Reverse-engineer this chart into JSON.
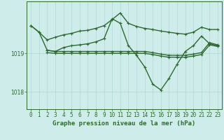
{
  "background_color": "#ceecea",
  "grid_color": "#b0d8d4",
  "line_color": "#2d6a2d",
  "title": "Graphe pression niveau de la mer (hPa)",
  "title_fontsize": 6.5,
  "tick_fontsize": 5.5,
  "xlim": [
    -0.5,
    23.5
  ],
  "ylim": [
    1017.55,
    1020.35
  ],
  "yticks": [
    1018,
    1019
  ],
  "xticks": [
    0,
    1,
    2,
    3,
    4,
    5,
    6,
    7,
    8,
    9,
    10,
    11,
    12,
    13,
    14,
    15,
    16,
    17,
    18,
    19,
    20,
    21,
    22,
    23
  ],
  "series": [
    {
      "x": [
        0,
        1,
        2,
        3,
        4,
        5,
        6,
        7,
        8,
        9,
        10,
        11,
        12,
        13,
        14,
        15,
        16,
        17,
        18,
        19,
        20,
        21,
        22,
        23
      ],
      "y": [
        1019.72,
        1019.55,
        1019.35,
        1019.42,
        1019.48,
        1019.52,
        1019.58,
        1019.6,
        1019.65,
        1019.72,
        1019.88,
        1020.05,
        1019.78,
        1019.7,
        1019.65,
        1019.62,
        1019.58,
        1019.55,
        1019.52,
        1019.5,
        1019.55,
        1019.68,
        1019.62,
        1019.62
      ],
      "marker": "+",
      "markersize": 3.5,
      "linewidth": 1.0
    },
    {
      "x": [
        0,
        1,
        2,
        3,
        4,
        5,
        6,
        7,
        8,
        9,
        10,
        11,
        12,
        13,
        14,
        15,
        16,
        17,
        18,
        19,
        20,
        21,
        22,
        23
      ],
      "y": [
        1019.72,
        1019.55,
        1019.08,
        1019.05,
        1019.15,
        1019.2,
        1019.22,
        1019.25,
        1019.3,
        1019.38,
        1019.9,
        1019.78,
        1019.2,
        1018.95,
        1018.65,
        1018.2,
        1018.05,
        1018.35,
        1018.72,
        1019.05,
        1019.2,
        1019.45,
        1019.25,
        1019.2
      ],
      "marker": "+",
      "markersize": 3.5,
      "linewidth": 1.0
    },
    {
      "x": [
        2,
        3,
        4,
        5,
        6,
        7,
        8,
        9,
        10,
        11,
        12,
        13,
        14,
        15,
        16,
        17,
        18,
        19,
        20,
        21,
        22,
        23
      ],
      "y": [
        1019.08,
        1019.05,
        1019.05,
        1019.05,
        1019.05,
        1019.05,
        1019.05,
        1019.05,
        1019.05,
        1019.05,
        1019.05,
        1019.05,
        1019.05,
        1019.02,
        1018.98,
        1018.95,
        1018.95,
        1018.95,
        1018.98,
        1019.02,
        1019.28,
        1019.22
      ],
      "marker": "+",
      "markersize": 3.5,
      "linewidth": 1.0
    },
    {
      "x": [
        2,
        3,
        4,
        5,
        6,
        7,
        8,
        9,
        10,
        11,
        12,
        13,
        14,
        15,
        16,
        17,
        18,
        19,
        20,
        21,
        22,
        23
      ],
      "y": [
        1019.02,
        1019.0,
        1019.0,
        1019.0,
        1019.0,
        1019.0,
        1019.0,
        1019.0,
        1019.0,
        1019.0,
        1019.0,
        1019.0,
        1019.0,
        1018.97,
        1018.93,
        1018.9,
        1018.9,
        1018.9,
        1018.93,
        1018.97,
        1019.22,
        1019.18
      ],
      "marker": "+",
      "markersize": 3.5,
      "linewidth": 1.0
    }
  ]
}
